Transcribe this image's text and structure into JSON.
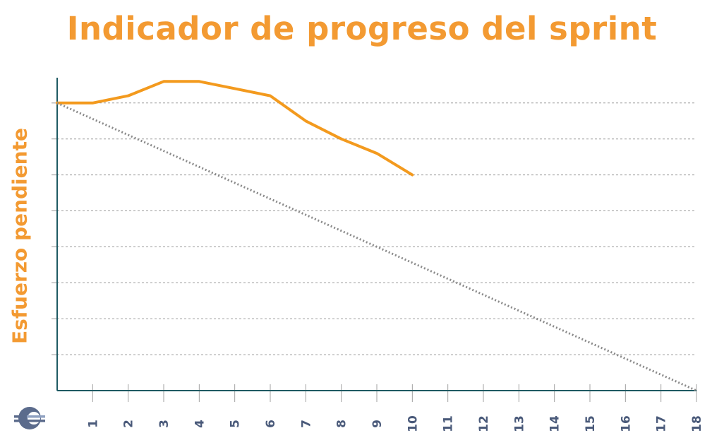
{
  "chart_data": {
    "type": "line",
    "title": "Indicador de progreso del sprint",
    "xlabel": "",
    "ylabel": "Esfuerzo pendiente",
    "x_ticks": [
      1,
      2,
      3,
      4,
      5,
      6,
      7,
      8,
      9,
      10,
      11,
      12,
      13,
      14,
      15,
      16,
      17,
      18
    ],
    "xlim": [
      0,
      18
    ],
    "ylim": [
      0,
      8
    ],
    "y_gridlines": [
      1,
      2,
      3,
      4,
      5,
      6,
      7,
      8
    ],
    "grid": "horizontal dashed",
    "series": [
      {
        "style": "solid",
        "color": "#f39a1e",
        "x": [
          0,
          1,
          2,
          3,
          4,
          5,
          6,
          7,
          8,
          9,
          10
        ],
        "y": [
          8,
          8,
          8.2,
          8.6,
          8.6,
          8.4,
          8.2,
          7.5,
          7,
          6.6,
          6
        ]
      },
      {
        "style": "dotted",
        "color": "#8a8a8a",
        "x": [
          0,
          18
        ],
        "y": [
          8,
          0
        ]
      }
    ],
    "colors": {
      "title": "#f39a32",
      "axis": "#1f5a63",
      "grid": "#9a9a9a",
      "tick_label": "#4a5a7a"
    }
  },
  "logo": {
    "name": "company-logo"
  }
}
